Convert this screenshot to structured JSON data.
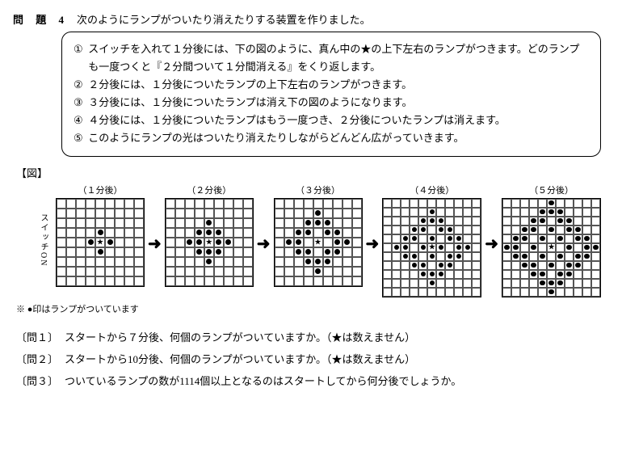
{
  "title": {
    "num": "問 題 4",
    "lead": "次のようにランプがついたり消えたりする装置を作りました。"
  },
  "rules": {
    "items": [
      {
        "mark": "①",
        "text": "スイッチを入れて１分後には、下の図のように、真ん中の★の上下左右のランプがつきます。どのランプも一度つくと『２分間ついて１分間消える』をくり返します。"
      },
      {
        "mark": "②",
        "text": "２分後には、１分後についたランプの上下左右のランプがつきます。"
      },
      {
        "mark": "③",
        "text": "３分後には、１分後についたランプは消え下の図のようになります。"
      },
      {
        "mark": "④",
        "text": "４分後には、１分後についたランプはもう一度つき、２分後についたランプは消えます。"
      },
      {
        "mark": "⑤",
        "text": "このようにランプの光はついたり消えたりしながらどんどん広がっていきます。"
      }
    ]
  },
  "figure": {
    "label": "【図】",
    "switch": "スイッチON",
    "arrow": "➜",
    "note": "※ ●印はランプがついています",
    "grids": [
      {
        "label": "（１分後）",
        "size": 9,
        "cell": 12,
        "star": [
          4,
          4
        ],
        "dots": [
          [
            3,
            4
          ],
          [
            4,
            3
          ],
          [
            4,
            5
          ],
          [
            5,
            4
          ]
        ]
      },
      {
        "label": "（２分後）",
        "size": 9,
        "cell": 12,
        "star": [
          4,
          4
        ],
        "dots": [
          [
            2,
            4
          ],
          [
            3,
            3
          ],
          [
            3,
            4
          ],
          [
            3,
            5
          ],
          [
            4,
            2
          ],
          [
            4,
            3
          ],
          [
            4,
            5
          ],
          [
            4,
            6
          ],
          [
            5,
            3
          ],
          [
            5,
            4
          ],
          [
            5,
            5
          ],
          [
            6,
            4
          ]
        ]
      },
      {
        "label": "（３分後）",
        "size": 9,
        "cell": 12,
        "star": [
          4,
          4
        ],
        "dots": [
          [
            1,
            4
          ],
          [
            2,
            3
          ],
          [
            2,
            4
          ],
          [
            2,
            5
          ],
          [
            3,
            2
          ],
          [
            3,
            3
          ],
          [
            3,
            5
          ],
          [
            3,
            6
          ],
          [
            4,
            1
          ],
          [
            4,
            2
          ],
          [
            4,
            6
          ],
          [
            4,
            7
          ],
          [
            5,
            2
          ],
          [
            5,
            3
          ],
          [
            5,
            5
          ],
          [
            5,
            6
          ],
          [
            6,
            3
          ],
          [
            6,
            4
          ],
          [
            6,
            5
          ],
          [
            7,
            4
          ]
        ]
      },
      {
        "label": "（４分後）",
        "size": 11,
        "cell": 11,
        "star": [
          5,
          5
        ],
        "dots": [
          [
            1,
            5
          ],
          [
            2,
            4
          ],
          [
            2,
            5
          ],
          [
            2,
            6
          ],
          [
            3,
            3
          ],
          [
            3,
            4
          ],
          [
            3,
            6
          ],
          [
            3,
            7
          ],
          [
            4,
            2
          ],
          [
            4,
            3
          ],
          [
            4,
            5
          ],
          [
            4,
            7
          ],
          [
            4,
            8
          ],
          [
            5,
            1
          ],
          [
            5,
            2
          ],
          [
            5,
            4
          ],
          [
            5,
            6
          ],
          [
            5,
            8
          ],
          [
            5,
            9
          ],
          [
            6,
            2
          ],
          [
            6,
            3
          ],
          [
            6,
            5
          ],
          [
            6,
            7
          ],
          [
            6,
            8
          ],
          [
            7,
            3
          ],
          [
            7,
            4
          ],
          [
            7,
            6
          ],
          [
            7,
            7
          ],
          [
            8,
            4
          ],
          [
            8,
            5
          ],
          [
            8,
            6
          ],
          [
            9,
            5
          ]
        ]
      },
      {
        "label": "（５分後）",
        "size": 11,
        "cell": 11,
        "star": [
          5,
          5
        ],
        "dots": [
          [
            0,
            5
          ],
          [
            1,
            4
          ],
          [
            1,
            5
          ],
          [
            1,
            6
          ],
          [
            2,
            3
          ],
          [
            2,
            4
          ],
          [
            2,
            6
          ],
          [
            2,
            7
          ],
          [
            3,
            2
          ],
          [
            3,
            3
          ],
          [
            3,
            5
          ],
          [
            3,
            7
          ],
          [
            3,
            8
          ],
          [
            4,
            1
          ],
          [
            4,
            2
          ],
          [
            4,
            4
          ],
          [
            4,
            6
          ],
          [
            4,
            8
          ],
          [
            4,
            9
          ],
          [
            5,
            0
          ],
          [
            5,
            1
          ],
          [
            5,
            3
          ],
          [
            5,
            7
          ],
          [
            5,
            9
          ],
          [
            5,
            10
          ],
          [
            6,
            1
          ],
          [
            6,
            2
          ],
          [
            6,
            4
          ],
          [
            6,
            6
          ],
          [
            6,
            8
          ],
          [
            6,
            9
          ],
          [
            7,
            2
          ],
          [
            7,
            3
          ],
          [
            7,
            5
          ],
          [
            7,
            7
          ],
          [
            7,
            8
          ],
          [
            8,
            3
          ],
          [
            8,
            4
          ],
          [
            8,
            6
          ],
          [
            8,
            7
          ],
          [
            9,
            4
          ],
          [
            9,
            5
          ],
          [
            9,
            6
          ],
          [
            10,
            5
          ]
        ]
      }
    ]
  },
  "questions": [
    {
      "tag": "〔問１〕",
      "text": "スタートから７分後、何個のランプがついていますか。（★は数えません）"
    },
    {
      "tag": "〔問２〕",
      "text": "スタートから10分後、何個のランプがついていますか。（★は数えません）"
    },
    {
      "tag": "〔問３〕",
      "text": "ついているランプの数が1114個以上となるのはスタートしてから何分後でしょうか。"
    }
  ]
}
